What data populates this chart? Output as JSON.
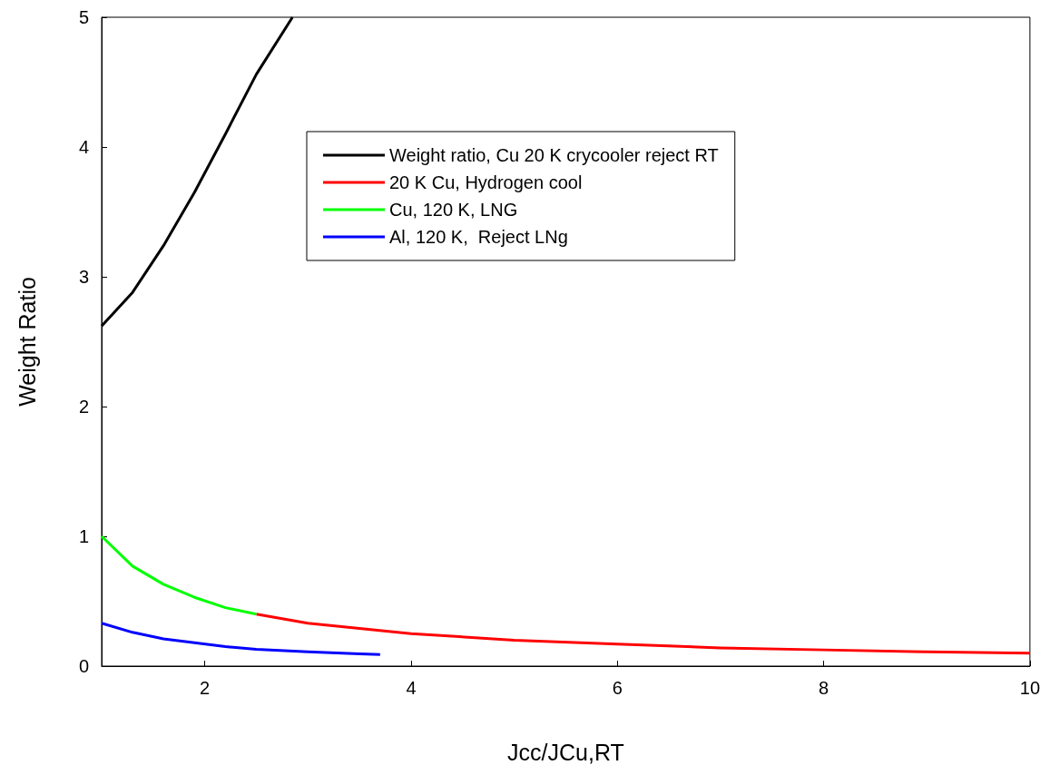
{
  "chart_data": {
    "type": "line",
    "xlabel": "Jcc/JCu,RT",
    "ylabel": "Weight Ratio",
    "xlim": [
      1,
      10
    ],
    "xticks": [
      2,
      4,
      6,
      8,
      10
    ],
    "ylim": [
      0,
      5
    ],
    "yticks": [
      0,
      1,
      2,
      3,
      4,
      5
    ],
    "grid": false,
    "legend": "top right",
    "marker": "none",
    "line_style": "solid",
    "series": [
      {
        "name": "Weight ratio, Cu 20 K crycooler reject RT",
        "color": "#000000",
        "x": [
          1,
          1.3,
          1.6,
          1.9,
          2.2,
          2.5,
          2.85
        ],
        "values": [
          2.62,
          2.88,
          3.24,
          3.65,
          4.1,
          4.56,
          5.0
        ]
      },
      {
        "name": "20 K Cu, Hydrogen cool",
        "color": "#ff0000",
        "x": [
          2.5,
          3,
          3.5,
          4,
          5,
          6,
          7,
          8,
          9,
          10
        ],
        "values": [
          0.4,
          0.33,
          0.29,
          0.25,
          0.2,
          0.17,
          0.14,
          0.125,
          0.11,
          0.1
        ]
      },
      {
        "name": "Cu, 120 K, LNG",
        "color": "#00ff00",
        "x": [
          1,
          1.3,
          1.6,
          1.9,
          2.2,
          2.5
        ],
        "values": [
          1.0,
          0.77,
          0.63,
          0.53,
          0.45,
          0.4
        ]
      },
      {
        "name": "Al, 120 K,  Reject LNg",
        "color": "#0000ff",
        "x": [
          1,
          1.3,
          1.6,
          1.9,
          2.2,
          2.5,
          3,
          3.5,
          3.7
        ],
        "values": [
          0.33,
          0.26,
          0.21,
          0.18,
          0.15,
          0.13,
          0.11,
          0.095,
          0.09
        ]
      }
    ]
  }
}
